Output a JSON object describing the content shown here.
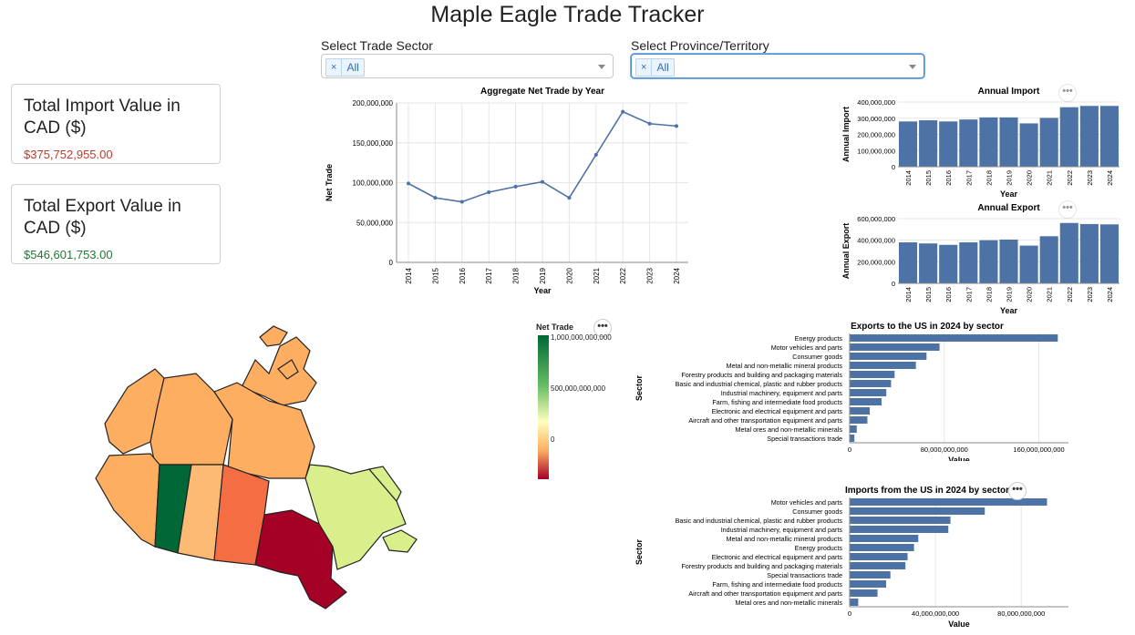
{
  "app_title": "Maple Eagle Trade Tracker",
  "filters": {
    "sector_label": "Select Trade Sector",
    "sector_chip": "All",
    "province_label": "Select Province/Territory",
    "province_chip": "All"
  },
  "cards": {
    "import_title": "Total Import Value in CAD ($)",
    "import_value": "$375,752,955.00",
    "export_title": "Total Export Value in CAD ($)",
    "export_value": "$546,601,753.00"
  },
  "colors": {
    "bar": "#4c72a6",
    "line": "#4c72a6",
    "import_value": "#c0392b",
    "export_value": "#1f7a33"
  },
  "icons": {
    "menu": "ellipsis-icon",
    "remove": "close-icon",
    "dropdown": "chevron-down-icon"
  },
  "map": {
    "legend_title": "Net Trade",
    "legend_ticks": [
      "1,000,000,000,000",
      "500,000,000,000",
      "0"
    ],
    "legend_tick_values": [
      1000000000000,
      500000000000,
      0
    ]
  },
  "chart_data": [
    {
      "type": "line",
      "title": "Aggregate Net Trade by Year",
      "xlabel": "Year",
      "ylabel": "Net Trade",
      "x": [
        "2014",
        "2015",
        "2016",
        "2017",
        "2018",
        "2019",
        "2020",
        "2021",
        "2022",
        "2023",
        "2024"
      ],
      "values": [
        99000000,
        81000000,
        76000000,
        88000000,
        95000000,
        101000000,
        81000000,
        135000000,
        189000000,
        174000000,
        171000000
      ],
      "ylim": [
        0,
        200000000
      ],
      "yticks": [
        "0",
        "50,000,000",
        "100,000,000",
        "150,000,000",
        "200,000,000"
      ],
      "grid": true
    },
    {
      "type": "bar",
      "title": "Annual Import",
      "xlabel": "Year",
      "ylabel": "Annual Import",
      "categories": [
        "2014",
        "2015",
        "2016",
        "2017",
        "2018",
        "2019",
        "2020",
        "2021",
        "2022",
        "2023",
        "2024"
      ],
      "values": [
        280000000,
        287000000,
        280000000,
        292000000,
        305000000,
        305000000,
        268000000,
        302000000,
        368000000,
        376000000,
        376000000
      ],
      "ylim": [
        0,
        400000000
      ],
      "yticks": [
        "0",
        "100,000,000",
        "200,000,000",
        "300,000,000",
        "400,000,000"
      ],
      "grid": true
    },
    {
      "type": "bar",
      "title": "Annual Export",
      "xlabel": "Year",
      "ylabel": "Annual Export",
      "categories": [
        "2014",
        "2015",
        "2016",
        "2017",
        "2018",
        "2019",
        "2020",
        "2021",
        "2022",
        "2023",
        "2024"
      ],
      "values": [
        380000000,
        370000000,
        357000000,
        380000000,
        400000000,
        406000000,
        350000000,
        437000000,
        560000000,
        550000000,
        547000000
      ],
      "ylim": [
        0,
        600000000
      ],
      "yticks": [
        "0",
        "200,000,000",
        "400,000,000",
        "600,000,000"
      ],
      "grid": true
    },
    {
      "type": "bar",
      "orientation": "horizontal",
      "title": "Exports to the US in 2024 by sector",
      "xlabel": "Value",
      "ylabel": "Sector",
      "categories": [
        "Energy products",
        "Motor vehicles and parts",
        "Consumer goods",
        "Metal and non-metallic mineral products",
        "Forestry products and building and packaging materials",
        "Basic and industrial chemical, plastic and rubber products",
        "Industrial machinery, equipment and parts",
        "Farm, fishing and intermediate food products",
        "Electronic and electrical equipment and parts",
        "Aircraft and other transportation equipment and parts",
        "Metal ores and non-metallic minerals",
        "Special transactions trade"
      ],
      "values": [
        176000000000,
        76000000000,
        65000000000,
        56000000000,
        38000000000,
        35000000000,
        31000000000,
        27000000000,
        17000000000,
        15000000000,
        6000000000,
        4000000000
      ],
      "xlim": [
        0,
        185000000000
      ],
      "xticks": [
        "0",
        "80,000,000,000",
        "160,000,000,000"
      ],
      "xtick_values": [
        0,
        80000000000,
        160000000000
      ],
      "grid": true
    },
    {
      "type": "bar",
      "orientation": "horizontal",
      "title": "Imports from the US in 2024 by sector",
      "xlabel": "Value",
      "ylabel": "Sector",
      "categories": [
        "Motor vehicles and parts",
        "Consumer goods",
        "Basic and industrial chemical, plastic and rubber products",
        "Industrial machinery, equipment and parts",
        "Metal and non-metallic mineral products",
        "Energy products",
        "Electronic and electrical equipment and parts",
        "Forestry products and building and packaging materials",
        "Special transactions trade",
        "Farm, fishing and intermediate food products",
        "Aircraft and other transportation equipment and parts",
        "Metal ores and non-metallic minerals"
      ],
      "values": [
        92000000000,
        63000000000,
        47000000000,
        46000000000,
        32000000000,
        30000000000,
        27000000000,
        26000000000,
        19000000000,
        17000000000,
        13000000000,
        4000000000
      ],
      "xlim": [
        0,
        102000000000
      ],
      "xticks": [
        "0",
        "40,000,000,000",
        "80,000,000,000"
      ],
      "xtick_values": [
        0,
        40000000000,
        80000000000
      ],
      "grid": true
    }
  ]
}
